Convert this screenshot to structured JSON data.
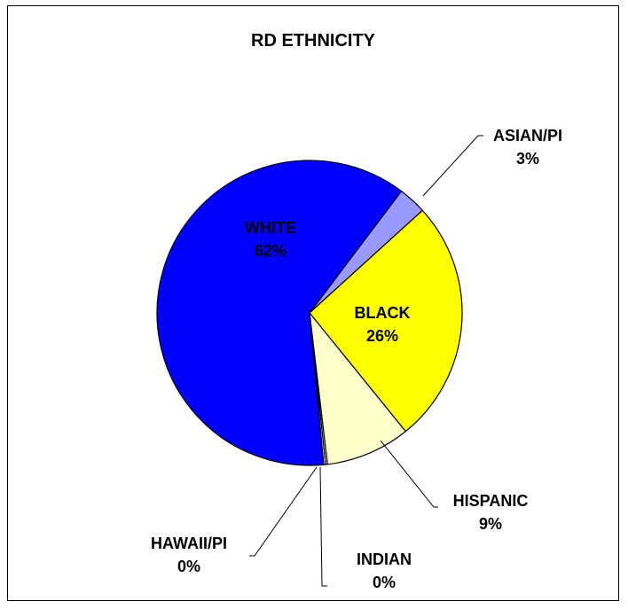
{
  "chart_data": {
    "type": "pie",
    "title": "RD ETHNICITY",
    "slices": [
      {
        "name": "WHITE",
        "value": 62,
        "label": "62%",
        "color": "#0000FF"
      },
      {
        "name": "ASIAN/PI",
        "value": 3,
        "label": "3%",
        "color": "#9999FF"
      },
      {
        "name": "BLACK",
        "value": 26,
        "label": "26%",
        "color": "#FFFF00"
      },
      {
        "name": "HISPANIC",
        "value": 9,
        "label": "9%",
        "color": "#FFFFCC"
      },
      {
        "name": "INDIAN",
        "value": 0.2,
        "label": "0%",
        "color": "#FFFFFF"
      },
      {
        "name": "HAWAII/PI",
        "value": 0.2,
        "label": "0%",
        "color": "#FFFFFF"
      }
    ],
    "legend": "none"
  }
}
